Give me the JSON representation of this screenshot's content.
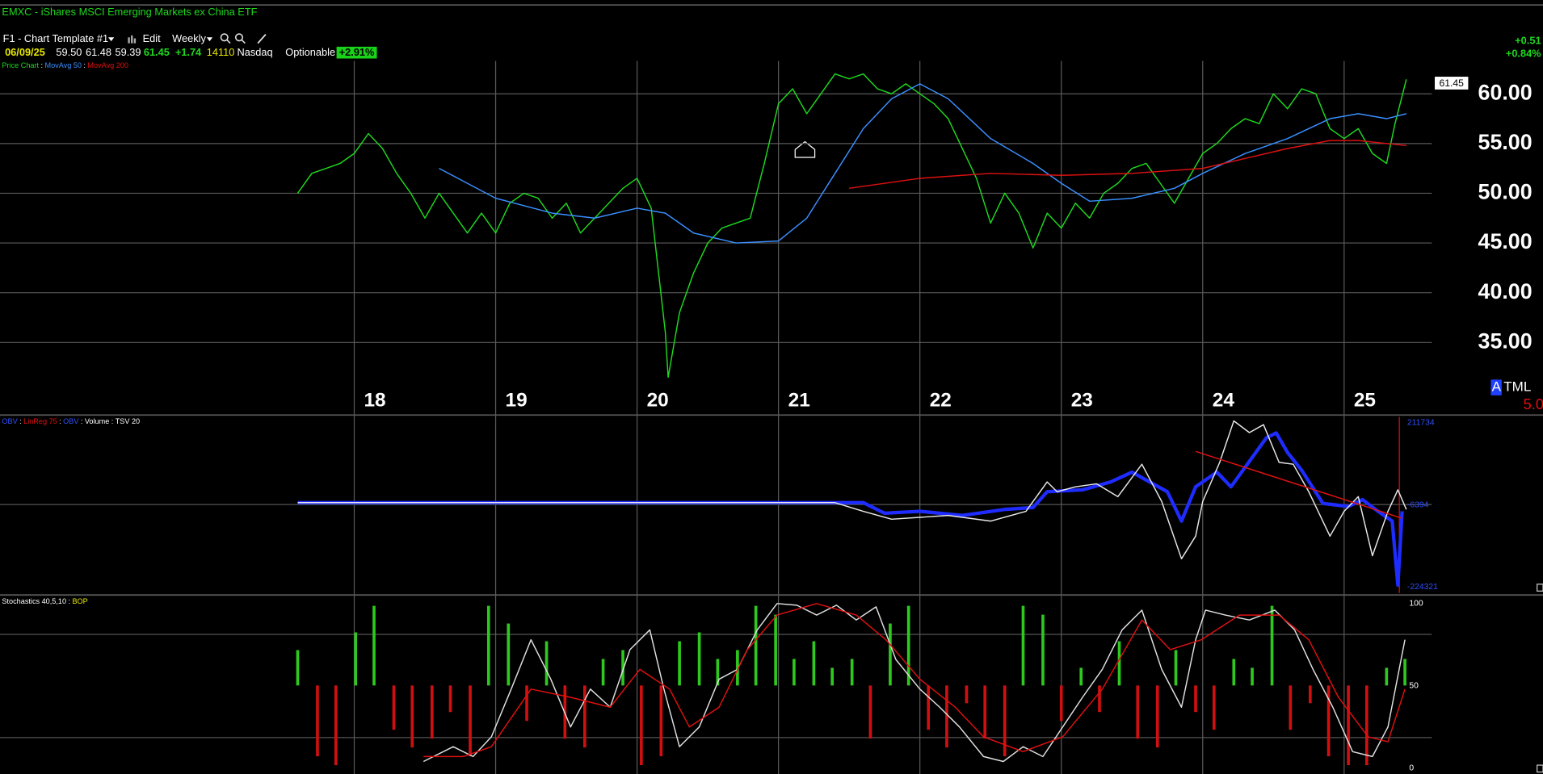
{
  "header": {
    "title": "EMXC - iShares MSCI Emerging Markets ex China ETF",
    "template": "F1 - Chart Template #1",
    "edit": "Edit",
    "period": "Weekly",
    "date": "06/09/25",
    "open": "59.50",
    "high": "61.48",
    "low": "59.39",
    "close": "61.45",
    "change": "+1.74",
    "volume": 14110,
    "exchange": "Nasdaq",
    "optionable": "Optionable",
    "change_pct": "+2.91%",
    "right_change": "+0.51",
    "right_change_pct": "+0.84%",
    "price_box": "61.45",
    "side_a": "A",
    "side_tml": "TML",
    "side_value": "5.0"
  },
  "chart_data": [
    {
      "type": "line",
      "separator": ":",
      "tick_color": "#ffffff",
      "grid": true,
      "xlim": [
        2015.495,
        2025.62
      ],
      "xticks": [
        {
          "value": 2018,
          "label": "18"
        },
        {
          "value": 2019,
          "label": "19"
        },
        {
          "value": 2020,
          "label": "20"
        },
        {
          "value": 2021,
          "label": "21"
        },
        {
          "value": 2022,
          "label": "22"
        },
        {
          "value": 2023,
          "label": "23"
        },
        {
          "value": 2024,
          "label": "24"
        },
        {
          "value": 2025,
          "label": "25"
        }
      ],
      "ylim": [
        27.9,
        63.3
      ],
      "yticks": [
        {
          "value": 35,
          "label": "35.00"
        },
        {
          "value": 40,
          "label": "40.00"
        },
        {
          "value": 45,
          "label": "45.00"
        },
        {
          "value": 50,
          "label": "50.00"
        },
        {
          "value": 55,
          "label": "55.00"
        },
        {
          "value": 60,
          "label": "60.00"
        }
      ],
      "series": [
        {
          "name": "Price Chart",
          "color": "#1ed81e",
          "x": [
            2017.6,
            2017.7,
            2017.8,
            2017.9,
            2018.0,
            2018.1,
            2018.2,
            2018.3,
            2018.4,
            2018.5,
            2018.6,
            2018.7,
            2018.8,
            2018.9,
            2019.0,
            2019.1,
            2019.2,
            2019.3,
            2019.4,
            2019.5,
            2019.6,
            2019.7,
            2019.8,
            2019.9,
            2020.0,
            2020.1,
            2020.2,
            2020.22,
            2020.3,
            2020.4,
            2020.5,
            2020.6,
            2020.7,
            2020.8,
            2020.9,
            2021.0,
            2021.1,
            2021.2,
            2021.3,
            2021.4,
            2021.5,
            2021.6,
            2021.7,
            2021.8,
            2021.9,
            2022.0,
            2022.1,
            2022.2,
            2022.3,
            2022.4,
            2022.5,
            2022.6,
            2022.7,
            2022.8,
            2022.9,
            2023.0,
            2023.1,
            2023.2,
            2023.3,
            2023.4,
            2023.5,
            2023.6,
            2023.7,
            2023.8,
            2023.9,
            2024.0,
            2024.1,
            2024.2,
            2024.3,
            2024.4,
            2024.5,
            2024.6,
            2024.7,
            2024.8,
            2024.9,
            2025.0,
            2025.1,
            2025.2,
            2025.3,
            2025.36,
            2025.44
          ],
          "values": [
            50,
            52,
            52.5,
            53,
            54,
            56,
            54.5,
            52,
            50,
            47.5,
            50,
            48,
            46,
            48,
            46,
            49,
            50,
            49.5,
            47.5,
            49,
            46,
            47.5,
            49,
            50.5,
            51.5,
            48.5,
            36,
            31.5,
            38,
            42,
            45,
            46.5,
            47,
            47.5,
            53,
            59,
            60.5,
            58,
            60,
            62,
            61.5,
            62,
            60.5,
            60,
            61,
            60,
            59,
            57.5,
            54.5,
            51.5,
            47,
            50,
            48,
            44.5,
            48,
            46.5,
            49,
            47.5,
            50,
            51,
            52.5,
            53,
            51,
            49,
            51.5,
            54,
            55,
            56.5,
            57.5,
            57,
            60,
            58.5,
            60.5,
            60,
            56.5,
            55.5,
            56.5,
            54,
            53,
            57,
            61.45
          ]
        },
        {
          "name": "MovAvg 50",
          "color": "#3a8fff",
          "x": [
            2018.6,
            2019.0,
            2019.4,
            2019.7,
            2020.0,
            2020.2,
            2020.4,
            2020.7,
            2021.0,
            2021.2,
            2021.4,
            2021.6,
            2021.8,
            2022.0,
            2022.2,
            2022.5,
            2022.8,
            2023.0,
            2023.2,
            2023.5,
            2023.8,
            2024.0,
            2024.3,
            2024.6,
            2024.9,
            2025.1,
            2025.3,
            2025.44
          ],
          "values": [
            52.5,
            49.5,
            48,
            47.5,
            48.5,
            48,
            46,
            45,
            45.2,
            47.5,
            52,
            56.5,
            59.5,
            61,
            59.5,
            55.5,
            53,
            51,
            49.2,
            49.5,
            50.5,
            52,
            54,
            55.5,
            57.5,
            58,
            57.5,
            58
          ]
        },
        {
          "name": "MovAvg 200",
          "color": "#e01010",
          "x": [
            2021.5,
            2022.0,
            2022.5,
            2023.0,
            2023.5,
            2024.0,
            2024.3,
            2024.6,
            2024.9,
            2025.1,
            2025.3,
            2025.44
          ],
          "values": [
            50.5,
            51.5,
            52,
            51.8,
            52,
            52.5,
            53.5,
            54.5,
            55.3,
            55.3,
            55,
            54.8
          ]
        }
      ]
    },
    {
      "type": "line",
      "separator": ":",
      "tick_color": "#3050ff",
      "grid": false,
      "xlim": [
        2015.495,
        2025.62
      ],
      "ylim": [
        -240000,
        227400
      ],
      "yticks": [
        211734,
        -6394,
        -224321
      ],
      "legend": [
        {
          "text": "OBV",
          "color": "#3050ff"
        },
        {
          "text": "LinReg 75",
          "color": "#e01010"
        },
        {
          "text": "OBV",
          "color": "#3050ff"
        },
        {
          "text": "Volume",
          "color": "#ffffff"
        },
        {
          "text": "TSV 20",
          "color": "#ffffff"
        }
      ],
      "series": [
        {
          "color": "#1f2cff",
          "x": [
            2017.6,
            2021.6,
            2021.75,
            2022.0,
            2022.3,
            2022.6,
            2022.8,
            2022.9,
            2023.15,
            2023.35,
            2023.5,
            2023.6,
            2023.75,
            2023.85,
            2023.95,
            2024.1,
            2024.2,
            2024.35,
            2024.45,
            2024.52,
            2024.6,
            2024.7,
            2024.85,
            2025.03,
            2025.13,
            2025.24,
            2025.34,
            2025.38,
            2025.41
          ],
          "values": [
            0,
            0,
            -28000,
            -23000,
            -34000,
            -18000,
            -13000,
            29000,
            34000,
            55000,
            81000,
            60000,
            29000,
            -49000,
            42000,
            81000,
            42000,
            120000,
            172000,
            185000,
            133000,
            86000,
            -2000,
            -10000,
            8000,
            -23000,
            -49000,
            -219000,
            -23000
          ]
        },
        {
          "color": "#e8e8e8",
          "x": [
            2017.6,
            2021.4,
            2021.6,
            2021.8,
            2022.2,
            2022.5,
            2022.75,
            2022.9,
            2022.97,
            2023.1,
            2023.25,
            2023.4,
            2023.57,
            2023.71,
            2023.85,
            2023.95,
            2024.0,
            2024.12,
            2024.22,
            2024.33,
            2024.43,
            2024.54,
            2024.64,
            2024.75,
            2024.9,
            2025.0,
            2025.1,
            2025.2,
            2025.31,
            2025.38,
            2025.44
          ],
          "values": [
            0,
            0,
            -23000,
            -44000,
            -34000,
            -49000,
            -23000,
            55000,
            29000,
            42000,
            50000,
            16000,
            102000,
            3000,
            -149000,
            -89000,
            3000,
            107000,
            217000,
            186000,
            207000,
            107000,
            102000,
            29000,
            -89000,
            -23000,
            16000,
            -141000,
            -23000,
            34000,
            -18000
          ]
        },
        {
          "color": "#e01010",
          "x": [
            2023.95,
            2025.41
          ],
          "values": [
            136000,
            -41500
          ]
        }
      ]
    },
    {
      "type": "line",
      "separator": ":",
      "tick_color": "#ffffff",
      "grid": false,
      "xlim": [
        2015.495,
        2025.62
      ],
      "ylim": [
        -3.6,
        104
      ],
      "yticks": [
        0,
        50,
        100
      ],
      "y2lim": [
        -1,
        1
      ],
      "legend": [
        {
          "text": "Stochastics 40,5,10",
          "color": "#ffffff"
        },
        {
          "text": "BOP",
          "color": "#e8e800"
        }
      ],
      "series": [
        {
          "type": "bar",
          "axis": "y2",
          "up_color": "#2ec81e",
          "down_color": "#d01010",
          "x": [
            2017.6,
            2017.74,
            2017.87,
            2018.01,
            2018.14,
            2018.28,
            2018.41,
            2018.55,
            2018.68,
            2018.82,
            2018.95,
            2019.09,
            2019.22,
            2019.36,
            2019.49,
            2019.63,
            2019.76,
            2019.9,
            2020.03,
            2020.17,
            2020.3,
            2020.44,
            2020.57,
            2020.71,
            2020.84,
            2020.98,
            2021.11,
            2021.25,
            2021.38,
            2021.52,
            2021.65,
            2021.79,
            2021.92,
            2022.06,
            2022.19,
            2022.33,
            2022.46,
            2022.6,
            2022.73,
            2022.87,
            2023.0,
            2023.14,
            2023.27,
            2023.41,
            2023.54,
            2023.68,
            2023.81,
            2023.95,
            2024.08,
            2024.22,
            2024.35,
            2024.49,
            2024.62,
            2024.76,
            2024.89,
            2025.03,
            2025.16,
            2025.3,
            2025.43
          ],
          "values": [
            0.4,
            -0.8,
            -0.9,
            0.6,
            0.9,
            -0.5,
            -0.7,
            -0.6,
            -0.3,
            -0.8,
            0.9,
            0.7,
            -0.4,
            0.5,
            -0.6,
            -0.7,
            0.3,
            0.4,
            -0.9,
            -0.8,
            0.5,
            0.6,
            0.3,
            0.4,
            0.9,
            0.8,
            0.3,
            0.5,
            0.2,
            0.3,
            -0.6,
            0.7,
            0.9,
            -0.5,
            -0.7,
            -0.2,
            -0.6,
            -0.8,
            0.9,
            0.8,
            -0.4,
            0.2,
            -0.3,
            0.5,
            -0.6,
            -0.7,
            0.4,
            -0.3,
            -0.5,
            0.3,
            0.2,
            0.9,
            -0.5,
            -0.2,
            -0.8,
            -0.9,
            -0.9,
            0.2,
            0.3
          ]
        },
        {
          "color": "#e0e0e0",
          "x": [
            2018.49,
            2018.7,
            2018.84,
            2018.97,
            2019.11,
            2019.25,
            2019.39,
            2019.53,
            2019.67,
            2019.81,
            2019.95,
            2020.09,
            2020.19,
            2020.3,
            2020.44,
            2020.58,
            2020.71,
            2020.85,
            2020.99,
            2021.13,
            2021.27,
            2021.41,
            2021.55,
            2021.69,
            2021.83,
            2022.0,
            2022.14,
            2022.28,
            2022.45,
            2022.59,
            2022.73,
            2022.87,
            2023.01,
            2023.15,
            2023.29,
            2023.43,
            2023.57,
            2023.71,
            2023.85,
            2023.95,
            2024.02,
            2024.16,
            2024.33,
            2024.51,
            2024.65,
            2024.78,
            2024.92,
            2025.06,
            2025.2,
            2025.31,
            2025.43
          ],
          "values": [
            4,
            13,
            7,
            19,
            48,
            78,
            54,
            25,
            48,
            37,
            72,
            84,
            48,
            13,
            25,
            54,
            60,
            84,
            100,
            99,
            93,
            99,
            90,
            98,
            66,
            48,
            37,
            25,
            7,
            4,
            13,
            7,
            25,
            43,
            60,
            84,
            96,
            60,
            37,
            78,
            96,
            93,
            90,
            96,
            84,
            60,
            37,
            10,
            7,
            25,
            78
          ]
        },
        {
          "color": "#e01010",
          "x": [
            2018.49,
            2018.77,
            2018.97,
            2019.25,
            2019.53,
            2019.81,
            2020.02,
            2020.23,
            2020.37,
            2020.58,
            2020.78,
            2020.99,
            2021.27,
            2021.55,
            2021.76,
            2022.0,
            2022.25,
            2022.45,
            2022.73,
            2023.01,
            2023.29,
            2023.57,
            2023.77,
            2023.99,
            2024.26,
            2024.54,
            2024.75,
            2024.96,
            2025.17,
            2025.31,
            2025.43
          ],
          "values": [
            7,
            7,
            13,
            48,
            43,
            37,
            60,
            48,
            25,
            37,
            72,
            93,
            100,
            93,
            78,
            54,
            37,
            19,
            10,
            19,
            48,
            90,
            72,
            78,
            93,
            93,
            78,
            43,
            19,
            16,
            48
          ]
        }
      ]
    }
  ]
}
